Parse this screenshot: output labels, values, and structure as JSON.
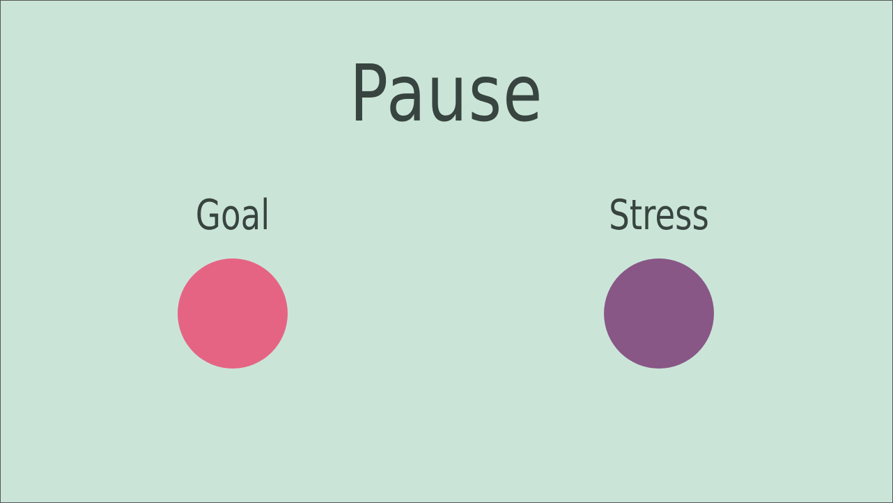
{
  "title": "Pause",
  "options": {
    "goal": {
      "label": "Goal",
      "color": "#e56484"
    },
    "stress": {
      "label": "Stress",
      "color": "#885786"
    }
  },
  "colors": {
    "background": "#cae5d8",
    "text": "#384440"
  }
}
